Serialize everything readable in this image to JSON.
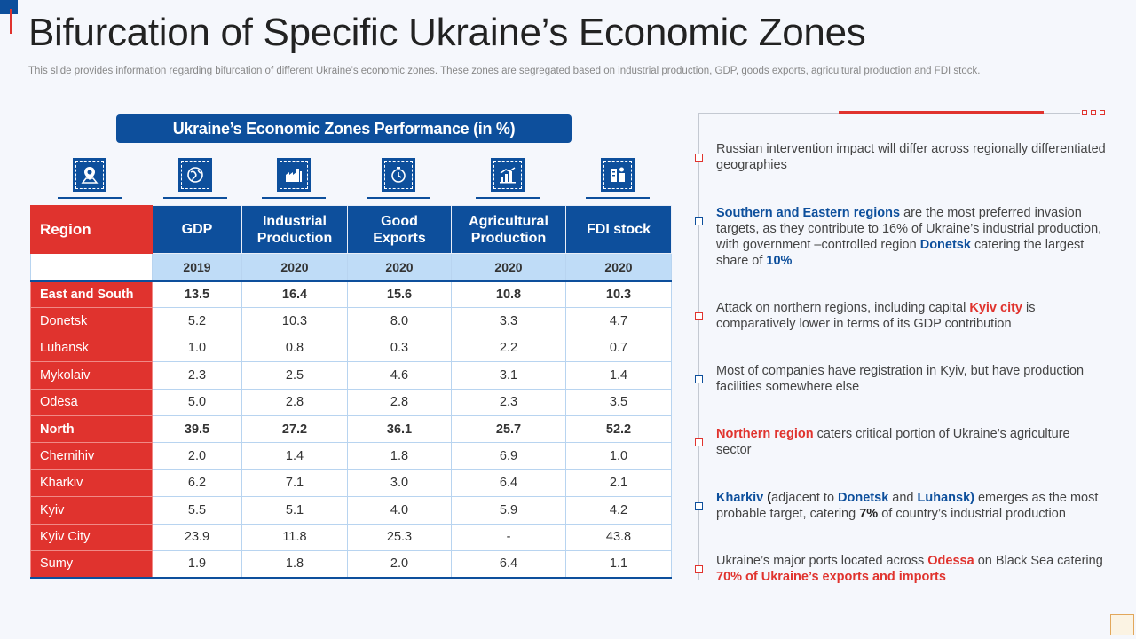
{
  "title": "Bifurcation of Specific Ukraine’s Economic Zones",
  "subtitle": "This slide provides information regarding bifurcation of different Ukraine’s economic zones. These zones are segregated based on industrial production, GDP, goods exports, agricultural production and FDI stock.",
  "table_banner": "Ukraine’s Economic Zones Performance (in %)",
  "icons": [
    "map-pin-icon",
    "globe-icon",
    "factory-icon",
    "clock-money-icon",
    "farm-chart-icon",
    "finance-icon"
  ],
  "colors": {
    "red": "#e0332e",
    "blue": "#0d4f9c",
    "light_blue": "#bfdcf7"
  },
  "table": {
    "header_region": "Region",
    "headers": [
      "GDP",
      "Industrial Production",
      "Good Exports",
      "Agricultural Production",
      "FDI stock"
    ],
    "years": [
      "2019",
      "2020",
      "2020",
      "2020",
      "2020"
    ],
    "rows": [
      {
        "region": "East and South",
        "values": [
          "13.5",
          "16.4",
          "15.6",
          "10.8",
          "10.3"
        ]
      },
      {
        "region": "Donetsk",
        "values": [
          "5.2",
          "10.3",
          "8.0",
          "3.3",
          "4.7"
        ]
      },
      {
        "region": "Luhansk",
        "values": [
          "1.0",
          "0.8",
          "0.3",
          "2.2",
          "0.7"
        ]
      },
      {
        "region": "Mykolaiv",
        "values": [
          "2.3",
          "2.5",
          "4.6",
          "3.1",
          "1.4"
        ]
      },
      {
        "region": "Odesa",
        "values": [
          "5.0",
          "2.8",
          "2.8",
          "2.3",
          "3.5"
        ]
      },
      {
        "region": "North",
        "values": [
          "39.5",
          "27.2",
          "36.1",
          "25.7",
          "52.2"
        ]
      },
      {
        "region": "Chernihiv",
        "values": [
          "2.0",
          "1.4",
          "1.8",
          "6.9",
          "1.0"
        ]
      },
      {
        "region": "Kharkiv",
        "values": [
          "6.2",
          "7.1",
          "3.0",
          "6.4",
          "2.1"
        ]
      },
      {
        "region": "Kyiv",
        "values": [
          "5.5",
          "5.1",
          "4.0",
          "5.9",
          "4.2"
        ]
      },
      {
        "region": "Kyiv City",
        "values": [
          "23.9",
          "11.8",
          "25.3",
          "-",
          "43.8"
        ]
      },
      {
        "region": "Sumy",
        "values": [
          "1.9",
          "1.8",
          "2.0",
          "6.4",
          "1.1"
        ]
      }
    ]
  },
  "bullets": [
    {
      "segments": [
        {
          "text": "Russian intervention impact will differ across regionally differentiated geographies",
          "style": ""
        }
      ]
    },
    {
      "segments": [
        {
          "text": "Southern and Eastern regions",
          "style": "hb"
        },
        {
          "text": " are the most preferred invasion targets, as they contribute to 16% of Ukraine’s industrial production, with government –controlled region ",
          "style": ""
        },
        {
          "text": "Donetsk",
          "style": "hb"
        },
        {
          "text": " catering the largest share of ",
          "style": ""
        },
        {
          "text": "10%",
          "style": "hb"
        }
      ]
    },
    {
      "segments": [
        {
          "text": "Attack on northern regions, including capital ",
          "style": ""
        },
        {
          "text": "Kyiv city",
          "style": "hr"
        },
        {
          "text": " is comparatively lower in terms of its GDP contribution",
          "style": ""
        }
      ]
    },
    {
      "segments": [
        {
          "text": "Most of companies have registration in Kyiv, but have production facilities somewhere else",
          "style": ""
        }
      ]
    },
    {
      "segments": [
        {
          "text": "Northern region",
          "style": "hr"
        },
        {
          "text": " caters critical portion of Ukraine’s agriculture sector",
          "style": ""
        }
      ]
    },
    {
      "segments": [
        {
          "text": "Kharkiv",
          "style": "hb"
        },
        {
          "text": " (",
          "style": "hk"
        },
        {
          "text": "adjacent to ",
          "style": ""
        },
        {
          "text": "Donetsk",
          "style": "hb"
        },
        {
          "text": " and ",
          "style": ""
        },
        {
          "text": "Luhansk)",
          "style": "hb"
        },
        {
          "text": " emerges as the most probable target, catering ",
          "style": ""
        },
        {
          "text": "7%",
          "style": "hk"
        },
        {
          "text": " of country’s industrial production",
          "style": ""
        }
      ]
    },
    {
      "segments": [
        {
          "text": "Ukraine’s major ports located across ",
          "style": ""
        },
        {
          "text": "Odessa",
          "style": "hr"
        },
        {
          "text": " on Black Sea catering ",
          "style": ""
        },
        {
          "text": "70% of Ukraine’s exports and imports",
          "style": "hr"
        }
      ]
    }
  ]
}
